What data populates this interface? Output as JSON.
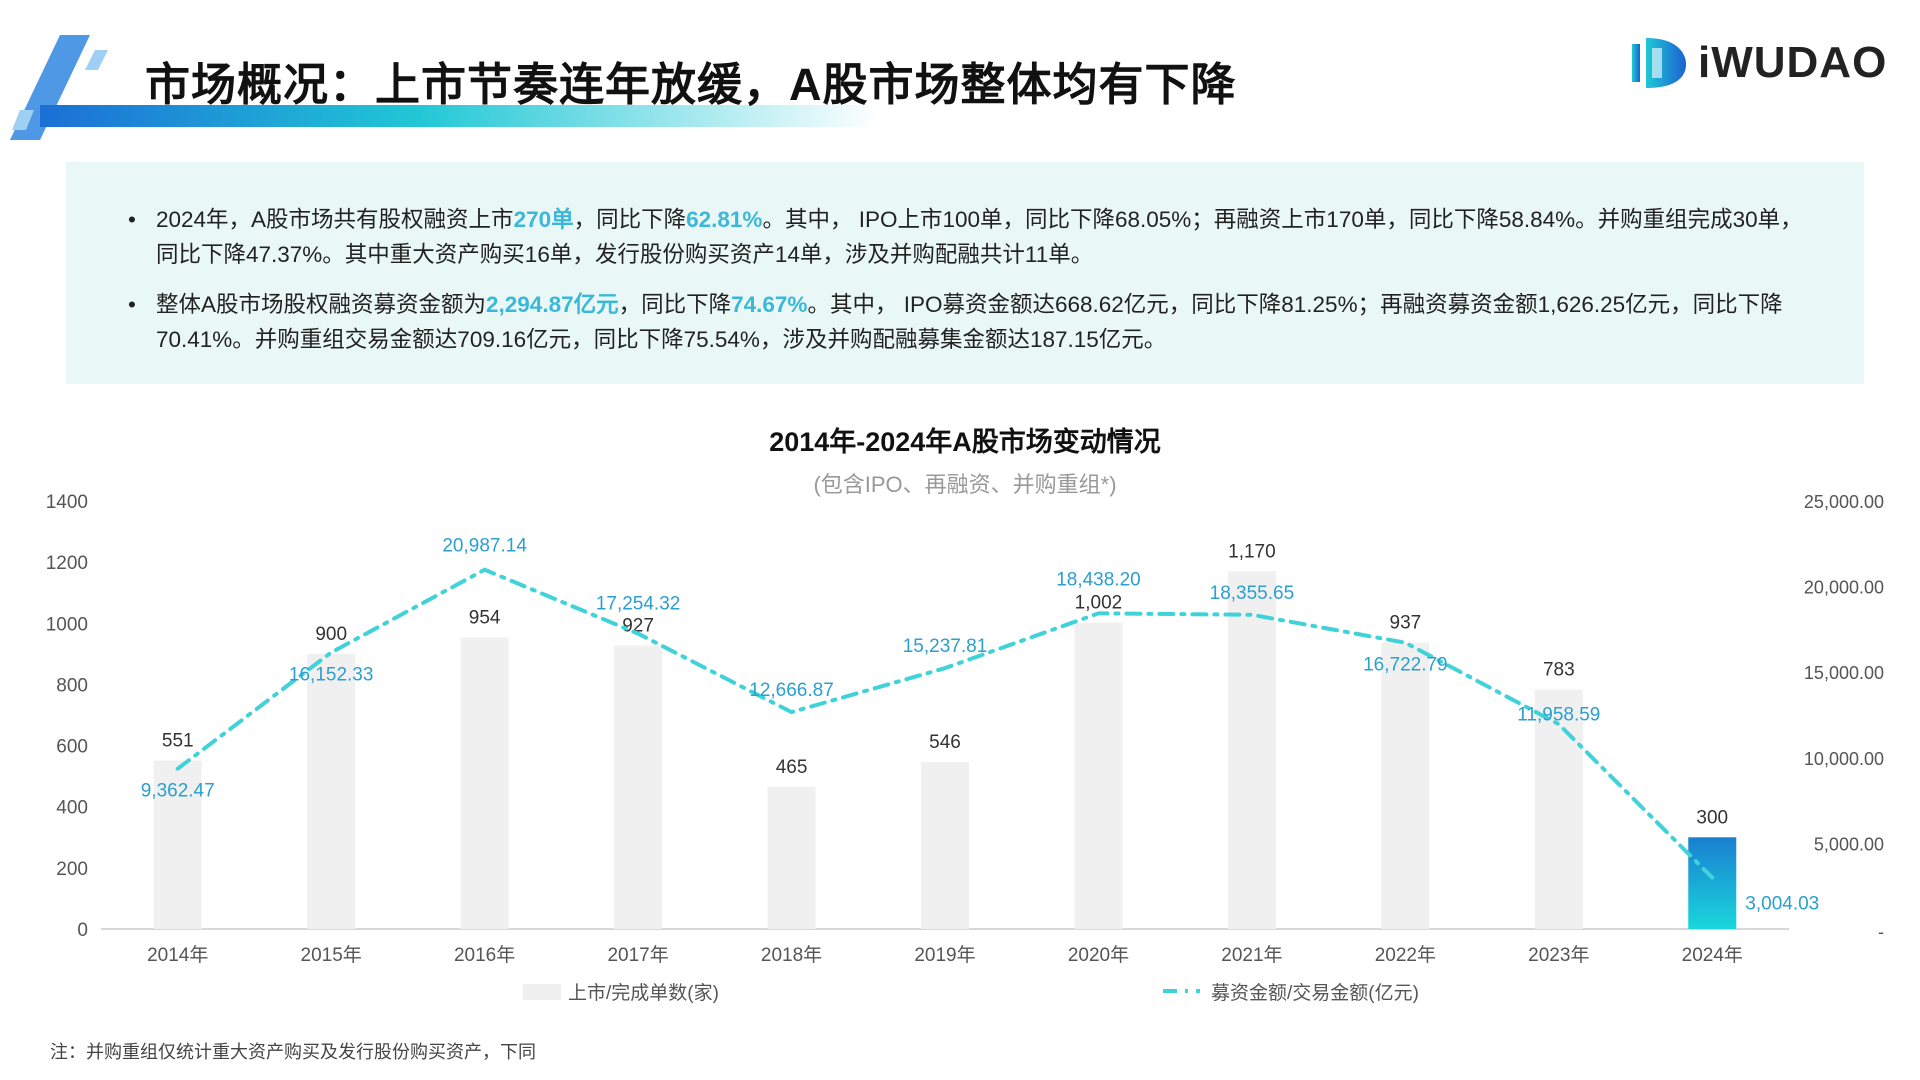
{
  "header": {
    "title": "市场概况：上市节奏连年放缓，A股市场整体均有下降",
    "logo_text": "iWUDAO"
  },
  "summary": {
    "bullets": [
      {
        "p1": "2024年，A股市场共有股权融资上市",
        "h1": "270单",
        "p2": "，同比下降",
        "h2": "62.81%",
        "p3": "。其中， IPO上市100单，同比下降68.05%；再融资上市170单，同比下降58.84%。并购重组完成30单，同比下降47.37%。其中重大资产购买16单，发行股份购买资产14单，涉及并购配融共计11单。"
      },
      {
        "p1": "整体A股市场股权融资募资金额为",
        "h1": "2,294.87亿元",
        "p2": "，同比下降",
        "h2": "74.67%",
        "p3": "。其中， IPO募资金额达668.62亿元，同比下降81.25%；再融资募资金额1,626.25亿元，同比下降70.41%。并购重组交易金额达709.16亿元，同比下降75.54%，涉及并购配融募集金额达187.15亿元。"
      }
    ]
  },
  "chart_data": {
    "type": "bar+line",
    "title": "2014年-2024年A股市场变动情况",
    "subtitle": "(包含IPO、再融资、并购重组*)",
    "categories": [
      "2014年",
      "2015年",
      "2016年",
      "2017年",
      "2018年",
      "2019年",
      "2020年",
      "2021年",
      "2022年",
      "2023年",
      "2024年"
    ],
    "series": [
      {
        "name": "上市/完成单数(家)",
        "type": "bar",
        "axis": "left",
        "values": [
          551,
          900,
          954,
          927,
          465,
          546,
          1002,
          1170,
          937,
          783,
          300
        ],
        "labels": [
          "551",
          "900",
          "954",
          "927",
          "465",
          "546",
          "1,002",
          "1,170",
          "937",
          "783",
          "300"
        ]
      },
      {
        "name": "募资金额/交易金额(亿元)",
        "type": "line",
        "axis": "right",
        "values": [
          9362.47,
          16152.33,
          20987.14,
          17254.32,
          12666.87,
          15237.81,
          18438.2,
          18355.65,
          16722.79,
          11958.59,
          3004.03
        ],
        "labels": [
          "9,362.47",
          "16,152.33",
          "20,987.14",
          "17,254.32",
          "12,666.87",
          "15,237.81",
          "18,438.20",
          "18,355.65",
          "16,722.79",
          "11,958.59",
          "3,004.03"
        ]
      }
    ],
    "left_axis": {
      "ylim": [
        0,
        1400
      ],
      "ticks": [
        "0",
        "200",
        "400",
        "600",
        "800",
        "1000",
        "1200",
        "1400"
      ]
    },
    "right_axis": {
      "ylim": [
        0,
        25000
      ],
      "ticks": [
        "-",
        "5,000.00",
        "10,000.00",
        "15,000.00",
        "20,000.00",
        "25,000.00"
      ]
    },
    "legend_position": "bottom",
    "grid": false,
    "colors": {
      "bar": "#f0f0f0",
      "highlight_bar_top": "#1a7fd0",
      "highlight_bar_bottom": "#1ad6dc",
      "line": "#3fd2d8",
      "line_label": "#2a9fd0",
      "bar_label": "#333333"
    }
  },
  "note": "注：并购重组仅统计重大资产购买及发行股份购买资产，下同"
}
